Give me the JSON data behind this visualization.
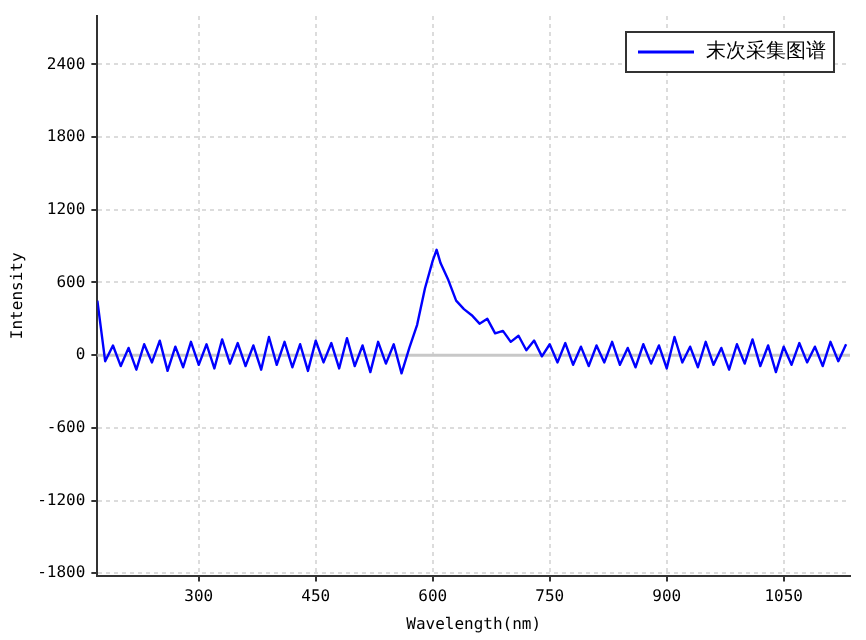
{
  "chart_data": {
    "type": "line",
    "xlabel": "Wavelength(nm)",
    "ylabel": "Intensity",
    "x": [
      170,
      180,
      190,
      200,
      210,
      220,
      230,
      240,
      250,
      260,
      270,
      280,
      290,
      300,
      310,
      320,
      330,
      340,
      350,
      360,
      370,
      380,
      390,
      400,
      410,
      420,
      430,
      440,
      450,
      460,
      470,
      480,
      490,
      500,
      510,
      520,
      530,
      540,
      550,
      560,
      570,
      580,
      590,
      600,
      605,
      610,
      620,
      630,
      640,
      650,
      660,
      670,
      680,
      690,
      700,
      710,
      720,
      730,
      740,
      750,
      760,
      770,
      780,
      790,
      800,
      810,
      820,
      830,
      840,
      850,
      860,
      870,
      880,
      890,
      900,
      910,
      920,
      930,
      940,
      950,
      960,
      970,
      980,
      990,
      1000,
      1010,
      1020,
      1030,
      1040,
      1050,
      1060,
      1070,
      1080,
      1090,
      1100,
      1110,
      1120,
      1130
    ],
    "series": [
      {
        "name": "末次采集图谱",
        "color": "#0000ff",
        "values": [
          450,
          -50,
          80,
          -90,
          60,
          -120,
          90,
          -60,
          120,
          -130,
          70,
          -100,
          110,
          -80,
          90,
          -110,
          130,
          -70,
          100,
          -90,
          80,
          -120,
          150,
          -80,
          110,
          -100,
          90,
          -130,
          120,
          -60,
          100,
          -110,
          140,
          -90,
          80,
          -140,
          110,
          -70,
          90,
          -150,
          60,
          250,
          550,
          780,
          870,
          760,
          620,
          450,
          380,
          330,
          260,
          300,
          180,
          200,
          110,
          160,
          40,
          120,
          -10,
          90,
          -60,
          100,
          -80,
          70,
          -90,
          80,
          -60,
          110,
          -80,
          60,
          -100,
          90,
          -70,
          80,
          -110,
          150,
          -60,
          70,
          -100,
          110,
          -80,
          60,
          -120,
          90,
          -70,
          130,
          -90,
          80,
          -140,
          70,
          -80,
          100,
          -60,
          70,
          -90,
          110,
          -50,
          90
        ]
      }
    ],
    "xlim": [
      170,
      1135
    ],
    "xticks": [
      300,
      450,
      600,
      750,
      900,
      1050
    ],
    "ylim": [
      -1820,
      2800
    ],
    "yticks": [
      -1800,
      -1200,
      -600,
      0,
      600,
      1200,
      1800,
      2400
    ],
    "ref_lines": [
      {
        "axis": "y",
        "value": 0,
        "color": "#c8c8c8"
      }
    ],
    "grid": true,
    "legend": "top right",
    "marker": "none",
    "line_style": "solid"
  }
}
